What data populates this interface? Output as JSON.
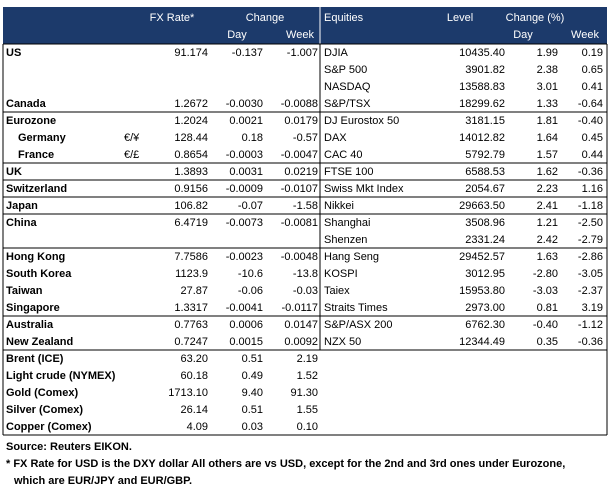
{
  "header": {
    "fx_rate": "FX Rate*",
    "change": "Change",
    "equities": "Equities",
    "level": "Level",
    "change_pct": "Change (%)",
    "sub": [
      "Day",
      "Week",
      "Day",
      "Week"
    ]
  },
  "table": {
    "rows": [
      [
        "US",
        null,
        "91.174",
        "-0.137",
        "-1.007",
        "DJIA",
        "10435.40",
        "1.99",
        "0.19"
      ],
      [
        null,
        null,
        null,
        null,
        null,
        "S&P 500",
        "3901.82",
        "2.38",
        "0.65"
      ],
      [
        null,
        null,
        null,
        null,
        null,
        "NASDAQ",
        "13588.83",
        "3.01",
        "0.41"
      ],
      [
        "Canada",
        null,
        "1.2672",
        "-0.0030",
        "-0.0088",
        "S&P/TSX",
        "18299.62",
        "1.33",
        "-0.64"
      ],
      [
        "Eurozone",
        null,
        "1.2024",
        "0.0021",
        "0.0179",
        "DJ Eurostox 50",
        "3181.15",
        "1.81",
        "-0.40"
      ],
      [
        "Germany",
        "€/¥",
        "128.44",
        "0.18",
        "-0.57",
        "DAX",
        "14012.82",
        "1.64",
        "0.45"
      ],
      [
        "France",
        "€/£",
        "0.8654",
        "-0.0003",
        "-0.0047",
        "CAC 40",
        "5792.79",
        "1.57",
        "0.44"
      ],
      [
        "UK",
        null,
        "1.3893",
        "0.0031",
        "0.0219",
        "FTSE 100",
        "6588.53",
        "1.62",
        "-0.36"
      ],
      [
        "Switzerland",
        null,
        "0.9156",
        "-0.0009",
        "-0.0107",
        "Swiss Mkt Index",
        "2054.67",
        "2.23",
        "1.16"
      ],
      [
        "Japan",
        null,
        "106.82",
        "-0.07",
        "-1.58",
        "Nikkei",
        "29663.50",
        "2.41",
        "-1.18"
      ],
      [
        "China",
        null,
        "6.4719",
        "-0.0073",
        "-0.0081",
        "Shanghai",
        "3508.96",
        "1.21",
        "-2.50"
      ],
      [
        null,
        null,
        null,
        null,
        null,
        "Shenzen",
        "2331.24",
        "2.42",
        "-2.79"
      ],
      [
        "Hong Kong",
        null,
        "7.7586",
        "-0.0023",
        "-0.0048",
        "Hang Seng",
        "29452.57",
        "1.63",
        "-2.86"
      ],
      [
        "South Korea",
        null,
        "1123.9",
        "-10.6",
        "-13.8",
        "KOSPI",
        "3012.95",
        "-2.80",
        "-3.05"
      ],
      [
        "Taiwan",
        null,
        "27.87",
        "-0.06",
        "-0.03",
        "Taiex",
        "15953.80",
        "-3.03",
        "-2.37"
      ],
      [
        "Singapore",
        null,
        "1.3317",
        "-0.0041",
        "-0.0117",
        "Straits Times",
        "2973.00",
        "0.81",
        "3.19"
      ],
      [
        "Australia",
        null,
        "0.7763",
        "0.0006",
        "0.0147",
        "S&P/ASX 200",
        "6762.30",
        "-0.40",
        "-1.12"
      ],
      [
        "New Zealand",
        null,
        "0.7247",
        "0.0015",
        "0.0092",
        "NZX 50",
        "12344.49",
        "0.35",
        "-0.36"
      ],
      [
        "Brent (ICE)",
        null,
        "63.20",
        "0.51",
        "2.19",
        null,
        null,
        null,
        null
      ],
      [
        "Light crude (NYMEX)",
        null,
        "60.18",
        "0.49",
        "1.52",
        null,
        null,
        null,
        null
      ],
      [
        "Gold (Comex)",
        null,
        "1713.10",
        "9.40",
        "91.30",
        null,
        null,
        null,
        null
      ],
      [
        "Silver (Comex)",
        null,
        "26.14",
        "0.51",
        "1.55",
        null,
        null,
        null,
        null
      ],
      [
        "Copper (Comex)",
        null,
        "4.09",
        "0.03",
        "0.10",
        null,
        null,
        null,
        null
      ]
    ]
  },
  "footer": {
    "source": "Source:  Reuters EIKON.",
    "notes": [
      "* FX Rate for USD is the DXY dollar  All others are vs USD, except for the 2nd and 3rd ones under Eurozone,",
      "which are EUR/JPY and EUR/GBP."
    ]
  }
}
